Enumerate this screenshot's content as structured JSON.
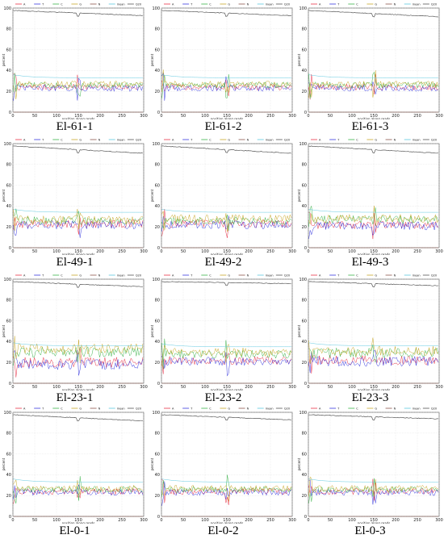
{
  "figure": {
    "captions": [
      "El-61-1",
      "El-61-2",
      "El-61-3",
      "El-49-1",
      "El-49-2",
      "El-49-3",
      "El-23-1",
      "El-23-2",
      "El-23-3",
      "El-0-1",
      "El-0-2",
      "El-0-3"
    ]
  },
  "chart_data": [
    {
      "panel": "El-61-1",
      "type": "line",
      "xlabel": "position along reads",
      "ylabel": "percent",
      "xlim": [
        0,
        300
      ],
      "ylim": [
        0,
        100
      ],
      "x_ticks": [
        0,
        50,
        100,
        150,
        200,
        250,
        300
      ],
      "y_ticks": [
        0,
        20,
        40,
        60,
        80,
        100
      ],
      "legend": [
        "A",
        "T",
        "C",
        "G",
        "N",
        "mean",
        "Q20"
      ],
      "series": [
        {
          "name": "A",
          "level": 24,
          "spread": 3
        },
        {
          "name": "T",
          "level": 23,
          "spread": 3
        },
        {
          "name": "C",
          "level": 26,
          "spread": 3
        },
        {
          "name": "G",
          "level": 27,
          "spread": 3
        },
        {
          "name": "N",
          "level": 0
        },
        {
          "name": "mean",
          "level": 33
        },
        {
          "name": "Q20",
          "start": 98,
          "end": 93
        }
      ]
    },
    {
      "panel": "El-61-2",
      "type": "line",
      "xlabel": "position along reads",
      "ylabel": "percent",
      "xlim": [
        0,
        300
      ],
      "ylim": [
        0,
        100
      ],
      "x_ticks": [
        0,
        50,
        100,
        150,
        200,
        250,
        300
      ],
      "y_ticks": [
        0,
        20,
        40,
        60,
        80,
        100
      ],
      "legend": [
        "A",
        "T",
        "C",
        "G",
        "N",
        "mean",
        "Q20"
      ],
      "series": [
        {
          "name": "A",
          "level": 24,
          "spread": 3
        },
        {
          "name": "T",
          "level": 23,
          "spread": 3
        },
        {
          "name": "C",
          "level": 26,
          "spread": 3
        },
        {
          "name": "G",
          "level": 27,
          "spread": 3
        },
        {
          "name": "N",
          "level": 0
        },
        {
          "name": "mean",
          "level": 33
        },
        {
          "name": "Q20",
          "start": 98,
          "end": 93
        }
      ]
    },
    {
      "panel": "El-61-3",
      "type": "line",
      "xlabel": "position along reads",
      "ylabel": "percent",
      "xlim": [
        0,
        300
      ],
      "ylim": [
        0,
        100
      ],
      "x_ticks": [
        0,
        50,
        100,
        150,
        200,
        250,
        300
      ],
      "y_ticks": [
        0,
        20,
        40,
        60,
        80,
        100
      ],
      "legend": [
        "A",
        "T",
        "C",
        "G",
        "N",
        "mean",
        "Q20"
      ],
      "series": [
        {
          "name": "A",
          "level": 24,
          "spread": 3
        },
        {
          "name": "T",
          "level": 23,
          "spread": 3
        },
        {
          "name": "C",
          "level": 26,
          "spread": 3
        },
        {
          "name": "G",
          "level": 27,
          "spread": 3
        },
        {
          "name": "N",
          "level": 0
        },
        {
          "name": "mean",
          "level": 33
        },
        {
          "name": "Q20",
          "start": 98,
          "end": 92
        }
      ]
    },
    {
      "panel": "El-49-1",
      "type": "line",
      "xlabel": "position along reads",
      "ylabel": "percent",
      "xlim": [
        0,
        300
      ],
      "ylim": [
        0,
        100
      ],
      "x_ticks": [
        0,
        50,
        100,
        150,
        200,
        250,
        300
      ],
      "y_ticks": [
        0,
        20,
        40,
        60,
        80,
        100
      ],
      "legend": [
        "A",
        "T",
        "C",
        "G",
        "N",
        "mean",
        "Q20"
      ],
      "series": [
        {
          "name": "A",
          "level": 23,
          "spread": 4
        },
        {
          "name": "T",
          "level": 22,
          "spread": 4
        },
        {
          "name": "C",
          "level": 26,
          "spread": 4
        },
        {
          "name": "G",
          "level": 27,
          "spread": 4
        },
        {
          "name": "N",
          "level": 0
        },
        {
          "name": "mean",
          "level": 34
        },
        {
          "name": "Q20",
          "start": 98,
          "end": 91
        }
      ]
    },
    {
      "panel": "El-49-2",
      "type": "line",
      "xlabel": "position along reads",
      "ylabel": "percent",
      "xlim": [
        0,
        300
      ],
      "ylim": [
        0,
        100
      ],
      "x_ticks": [
        0,
        50,
        100,
        150,
        200,
        250,
        300
      ],
      "y_ticks": [
        0,
        20,
        40,
        60,
        80,
        100
      ],
      "legend": [
        "A",
        "T",
        "C",
        "G",
        "N",
        "mean",
        "Q20"
      ],
      "series": [
        {
          "name": "A",
          "level": 23,
          "spread": 4
        },
        {
          "name": "T",
          "level": 22,
          "spread": 4
        },
        {
          "name": "C",
          "level": 26,
          "spread": 4
        },
        {
          "name": "G",
          "level": 28,
          "spread": 4
        },
        {
          "name": "N",
          "level": 0
        },
        {
          "name": "mean",
          "level": 34
        },
        {
          "name": "Q20",
          "start": 98,
          "end": 91
        }
      ]
    },
    {
      "panel": "El-49-3",
      "type": "line",
      "xlabel": "position along reads",
      "ylabel": "percent",
      "xlim": [
        0,
        300
      ],
      "ylim": [
        0,
        100
      ],
      "x_ticks": [
        0,
        50,
        100,
        150,
        200,
        250,
        300
      ],
      "y_ticks": [
        0,
        20,
        40,
        60,
        80,
        100
      ],
      "legend": [
        "A",
        "T",
        "C",
        "G",
        "N",
        "mean",
        "Q20"
      ],
      "series": [
        {
          "name": "A",
          "level": 22,
          "spread": 4
        },
        {
          "name": "T",
          "level": 21,
          "spread": 4
        },
        {
          "name": "C",
          "level": 27,
          "spread": 4
        },
        {
          "name": "G",
          "level": 28,
          "spread": 4
        },
        {
          "name": "N",
          "level": 0
        },
        {
          "name": "mean",
          "level": 34
        },
        {
          "name": "Q20",
          "start": 98,
          "end": 91
        }
      ]
    },
    {
      "panel": "El-23-1",
      "type": "line",
      "xlabel": "position along reads",
      "ylabel": "percent",
      "xlim": [
        0,
        300
      ],
      "ylim": [
        0,
        100
      ],
      "x_ticks": [
        0,
        50,
        100,
        150,
        200,
        250,
        300
      ],
      "y_ticks": [
        0,
        20,
        40,
        60,
        80,
        100
      ],
      "legend": [
        "A",
        "T",
        "C",
        "G",
        "N",
        "mean",
        "Q20"
      ],
      "series": [
        {
          "name": "A",
          "level": 20,
          "spread": 5
        },
        {
          "name": "T",
          "level": 18,
          "spread": 5
        },
        {
          "name": "C",
          "level": 30,
          "spread": 5
        },
        {
          "name": "G",
          "level": 33,
          "spread": 5
        },
        {
          "name": "N",
          "level": 0
        },
        {
          "name": "mean",
          "level": 36
        },
        {
          "name": "Q20",
          "start": 98,
          "end": 93
        }
      ]
    },
    {
      "panel": "El-23-2",
      "type": "line",
      "xlabel": "position along reads",
      "ylabel": "percent",
      "xlim": [
        0,
        300
      ],
      "ylim": [
        0,
        100
      ],
      "x_ticks": [
        0,
        50,
        100,
        150,
        200,
        250,
        300
      ],
      "y_ticks": [
        0,
        20,
        40,
        60,
        80,
        100
      ],
      "legend": [
        "A",
        "T",
        "C",
        "G",
        "N",
        "mean",
        "Q20"
      ],
      "series": [
        {
          "name": "A",
          "level": 22,
          "spread": 4
        },
        {
          "name": "T",
          "level": 21,
          "spread": 4
        },
        {
          "name": "C",
          "level": 28,
          "spread": 4
        },
        {
          "name": "G",
          "level": 30,
          "spread": 4
        },
        {
          "name": "N",
          "level": 0
        },
        {
          "name": "mean",
          "level": 35
        },
        {
          "name": "Q20",
          "start": 98,
          "end": 96
        }
      ]
    },
    {
      "panel": "El-23-3",
      "type": "line",
      "xlabel": "position along reads",
      "ylabel": "percent",
      "xlim": [
        0,
        300
      ],
      "ylim": [
        0,
        100
      ],
      "x_ticks": [
        0,
        50,
        100,
        150,
        200,
        250,
        300
      ],
      "y_ticks": [
        0,
        20,
        40,
        60,
        80,
        100
      ],
      "legend": [
        "A",
        "T",
        "C",
        "G",
        "N",
        "mean",
        "Q20"
      ],
      "series": [
        {
          "name": "A",
          "level": 22,
          "spread": 5
        },
        {
          "name": "T",
          "level": 21,
          "spread": 5
        },
        {
          "name": "C",
          "level": 29,
          "spread": 5
        },
        {
          "name": "G",
          "level": 31,
          "spread": 5
        },
        {
          "name": "N",
          "level": 0
        },
        {
          "name": "mean",
          "level": 36
        },
        {
          "name": "Q20",
          "start": 98,
          "end": 94
        }
      ]
    },
    {
      "panel": "El-0-1",
      "type": "line",
      "xlabel": "position along reads",
      "ylabel": "percent",
      "xlim": [
        0,
        300
      ],
      "ylim": [
        0,
        100
      ],
      "x_ticks": [
        0,
        50,
        100,
        150,
        200,
        250,
        300
      ],
      "y_ticks": [
        0,
        20,
        40,
        60,
        80,
        100
      ],
      "legend": [
        "A",
        "T",
        "C",
        "G",
        "N",
        "mean",
        "Q20"
      ],
      "series": [
        {
          "name": "A",
          "level": 24,
          "spread": 3
        },
        {
          "name": "T",
          "level": 23,
          "spread": 3
        },
        {
          "name": "C",
          "level": 26,
          "spread": 3
        },
        {
          "name": "G",
          "level": 27,
          "spread": 3
        },
        {
          "name": "N",
          "level": 0
        },
        {
          "name": "mean",
          "level": 33
        },
        {
          "name": "Q20",
          "start": 98,
          "end": 92
        }
      ]
    },
    {
      "panel": "El-0-2",
      "type": "line",
      "xlabel": "position along reads",
      "ylabel": "percent",
      "xlim": [
        0,
        300
      ],
      "ylim": [
        0,
        100
      ],
      "x_ticks": [
        0,
        50,
        100,
        150,
        200,
        250,
        300
      ],
      "y_ticks": [
        0,
        20,
        40,
        60,
        80,
        100
      ],
      "legend": [
        "A",
        "T",
        "C",
        "G",
        "N",
        "mean",
        "Q20"
      ],
      "series": [
        {
          "name": "A",
          "level": 24,
          "spread": 3
        },
        {
          "name": "T",
          "level": 23,
          "spread": 3
        },
        {
          "name": "C",
          "level": 26,
          "spread": 3
        },
        {
          "name": "G",
          "level": 27,
          "spread": 3
        },
        {
          "name": "N",
          "level": 0
        },
        {
          "name": "mean",
          "level": 33
        },
        {
          "name": "Q20",
          "start": 98,
          "end": 93
        }
      ]
    },
    {
      "panel": "El-0-3",
      "type": "line",
      "xlabel": "position along reads",
      "ylabel": "percent",
      "xlim": [
        0,
        300
      ],
      "ylim": [
        0,
        100
      ],
      "x_ticks": [
        0,
        50,
        100,
        150,
        200,
        250,
        300
      ],
      "y_ticks": [
        0,
        20,
        40,
        60,
        80,
        100
      ],
      "legend": [
        "A",
        "T",
        "C",
        "G",
        "N",
        "mean",
        "Q20"
      ],
      "series": [
        {
          "name": "A",
          "level": 24,
          "spread": 3
        },
        {
          "name": "T",
          "level": 23,
          "spread": 3
        },
        {
          "name": "C",
          "level": 26,
          "spread": 3
        },
        {
          "name": "G",
          "level": 27,
          "spread": 3
        },
        {
          "name": "N",
          "level": 0
        },
        {
          "name": "mean",
          "level": 33
        },
        {
          "name": "Q20",
          "start": 98,
          "end": 94
        }
      ]
    }
  ],
  "colors": {
    "A": "#e8344a",
    "T": "#3a3adf",
    "C": "#3cb44b",
    "G": "#c8a82a",
    "N": "#8c564b",
    "mean": "#5ec8e0",
    "Q20": "#555555"
  }
}
